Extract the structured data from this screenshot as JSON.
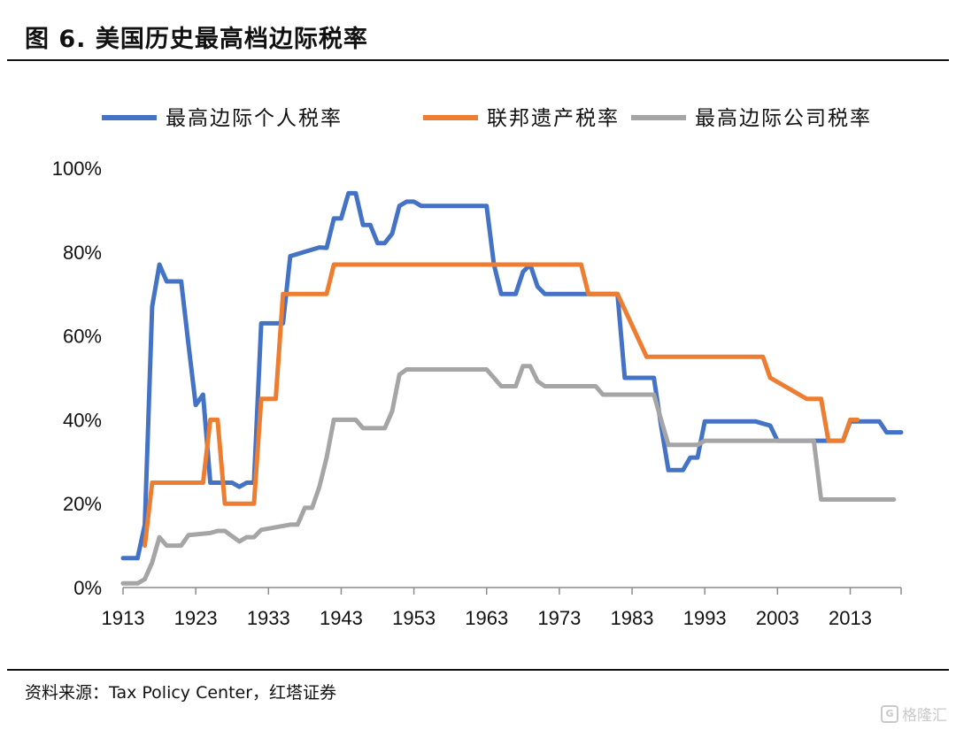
{
  "figure": {
    "title": "图 6. 美国历史最高档边际税率",
    "source": "资料来源：Tax Policy Center，红塔证券",
    "watermark": "格隆汇"
  },
  "chart_data": {
    "type": "line",
    "title": "图 6. 美国历史最高档边际税率",
    "xlabel": "",
    "ylabel": "",
    "xlim": [
      1913,
      2020
    ],
    "ylim": [
      0,
      100
    ],
    "y_tick_format": "percent",
    "x_ticks": [
      1913,
      1923,
      1933,
      1943,
      1953,
      1963,
      1973,
      1983,
      1993,
      2003,
      2013
    ],
    "y_ticks": [
      0,
      20,
      40,
      60,
      80,
      100
    ],
    "x_tick_labels": [
      "1913",
      "1923",
      "1933",
      "1943",
      "1953",
      "1963",
      "1973",
      "1983",
      "1993",
      "2003",
      "2013"
    ],
    "y_tick_labels": [
      "0%",
      "20%",
      "40%",
      "60%",
      "80%",
      "100%"
    ],
    "legend_position": "top",
    "series": [
      {
        "name": "最高边际个人税率",
        "color": "#4472C4",
        "points": [
          [
            1913,
            7
          ],
          [
            1915,
            7
          ],
          [
            1916,
            15
          ],
          [
            1917,
            67
          ],
          [
            1918,
            77
          ],
          [
            1919,
            73
          ],
          [
            1921,
            73
          ],
          [
            1922,
            58
          ],
          [
            1923,
            43.5
          ],
          [
            1924,
            46
          ],
          [
            1925,
            25
          ],
          [
            1928,
            25
          ],
          [
            1929,
            24
          ],
          [
            1930,
            25
          ],
          [
            1931,
            25
          ],
          [
            1932,
            63
          ],
          [
            1935,
            63
          ],
          [
            1936,
            79
          ],
          [
            1940,
            81.1
          ],
          [
            1941,
            81
          ],
          [
            1942,
            88
          ],
          [
            1943,
            88
          ],
          [
            1944,
            94
          ],
          [
            1945,
            94
          ],
          [
            1946,
            86.45
          ],
          [
            1947,
            86.45
          ],
          [
            1948,
            82.13
          ],
          [
            1949,
            82.13
          ],
          [
            1950,
            84.36
          ],
          [
            1951,
            91
          ],
          [
            1952,
            92
          ],
          [
            1953,
            92
          ],
          [
            1954,
            91
          ],
          [
            1963,
            91
          ],
          [
            1964,
            77
          ],
          [
            1965,
            70
          ],
          [
            1967,
            70
          ],
          [
            1968,
            75.25
          ],
          [
            1969,
            77
          ],
          [
            1970,
            71.75
          ],
          [
            1971,
            70
          ],
          [
            1981,
            70
          ],
          [
            1982,
            50
          ],
          [
            1986,
            50
          ],
          [
            1987,
            38.5
          ],
          [
            1988,
            28
          ],
          [
            1990,
            28
          ],
          [
            1991,
            31
          ],
          [
            1992,
            31
          ],
          [
            1993,
            39.6
          ],
          [
            2000,
            39.6
          ],
          [
            2001,
            39.1
          ],
          [
            2002,
            38.6
          ],
          [
            2003,
            35
          ],
          [
            2012,
            35
          ],
          [
            2013,
            39.6
          ],
          [
            2017,
            39.6
          ],
          [
            2018,
            37
          ],
          [
            2020,
            37
          ]
        ]
      },
      {
        "name": "联邦遗产税率",
        "color": "#ED7D31",
        "points": [
          [
            1916,
            10
          ],
          [
            1917,
            25
          ],
          [
            1924,
            25
          ],
          [
            1925,
            40
          ],
          [
            1926,
            40
          ],
          [
            1927,
            20
          ],
          [
            1931,
            20
          ],
          [
            1932,
            45
          ],
          [
            1934,
            45
          ],
          [
            1935,
            70
          ],
          [
            1941,
            70
          ],
          [
            1942,
            77
          ],
          [
            1976,
            77
          ],
          [
            1977,
            70
          ],
          [
            1981,
            70
          ],
          [
            1985,
            55
          ],
          [
            2001,
            55
          ],
          [
            2002,
            50
          ],
          [
            2003,
            49
          ],
          [
            2004,
            48
          ],
          [
            2005,
            47
          ],
          [
            2006,
            46
          ],
          [
            2007,
            45
          ],
          [
            2009,
            45
          ],
          [
            2010,
            35
          ],
          [
            2012,
            35
          ],
          [
            2013,
            40
          ],
          [
            2014,
            40
          ]
        ]
      },
      {
        "name": "最高边际公司税率",
        "color": "#A5A5A5",
        "points": [
          [
            1913,
            1
          ],
          [
            1915,
            1
          ],
          [
            1916,
            2
          ],
          [
            1917,
            6
          ],
          [
            1918,
            12
          ],
          [
            1919,
            10
          ],
          [
            1921,
            10
          ],
          [
            1922,
            12.5
          ],
          [
            1925,
            13
          ],
          [
            1926,
            13.5
          ],
          [
            1927,
            13.5
          ],
          [
            1929,
            11
          ],
          [
            1930,
            12
          ],
          [
            1931,
            12
          ],
          [
            1932,
            13.75
          ],
          [
            1936,
            15
          ],
          [
            1937,
            15
          ],
          [
            1938,
            19
          ],
          [
            1939,
            19
          ],
          [
            1940,
            24
          ],
          [
            1941,
            31
          ],
          [
            1942,
            40
          ],
          [
            1945,
            40
          ],
          [
            1946,
            38
          ],
          [
            1949,
            38
          ],
          [
            1950,
            42
          ],
          [
            1951,
            50.75
          ],
          [
            1952,
            52
          ],
          [
            1963,
            52
          ],
          [
            1964,
            50
          ],
          [
            1965,
            48
          ],
          [
            1967,
            48
          ],
          [
            1968,
            52.8
          ],
          [
            1969,
            52.8
          ],
          [
            1970,
            49.2
          ],
          [
            1971,
            48
          ],
          [
            1978,
            48
          ],
          [
            1979,
            46
          ],
          [
            1986,
            46
          ],
          [
            1987,
            40
          ],
          [
            1988,
            34
          ],
          [
            1992,
            34
          ],
          [
            1993,
            35
          ],
          [
            2008,
            35
          ],
          [
            2009,
            21
          ],
          [
            2019,
            21
          ]
        ]
      }
    ]
  }
}
